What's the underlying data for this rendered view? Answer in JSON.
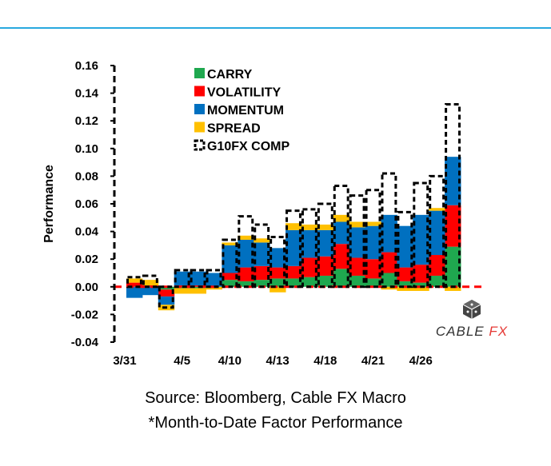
{
  "chart_data": {
    "type": "bar",
    "stacked": true,
    "ylabel": "Performance",
    "ylim": [
      -0.04,
      0.16
    ],
    "yticks": [
      "0.16",
      "0.14",
      "0.12",
      "0.10",
      "0.08",
      "0.06",
      "0.04",
      "0.02",
      "0.00",
      "-0.02",
      "-0.04"
    ],
    "xtick_labels": [
      "3/31",
      "4/5",
      "4/10",
      "4/13",
      "4/18",
      "4/21",
      "4/26"
    ],
    "xtick_positions": [
      0,
      3,
      6,
      9,
      12,
      15,
      18
    ],
    "reference_line": 0,
    "series": [
      {
        "name": "CARRY",
        "color": "#1fa84f",
        "values": [
          0.0,
          0.0,
          -0.002,
          -0.001,
          -0.001,
          0.0,
          0.005,
          0.004,
          0.005,
          0.006,
          0.006,
          0.007,
          0.008,
          0.013,
          0.008,
          0.006,
          0.01,
          0.004,
          0.003,
          0.008,
          0.029
        ]
      },
      {
        "name": "VOLATILITY",
        "color": "#ff0000",
        "values": [
          0.003,
          0.001,
          -0.005,
          0.001,
          0.001,
          0.0,
          0.005,
          0.01,
          0.01,
          0.008,
          0.009,
          0.014,
          0.014,
          0.018,
          0.013,
          0.014,
          0.015,
          0.01,
          0.013,
          0.015,
          0.03
        ]
      },
      {
        "name": "MOMENTUM",
        "color": "#0070c0",
        "values": [
          -0.008,
          -0.006,
          -0.006,
          0.01,
          0.01,
          0.01,
          0.02,
          0.02,
          0.017,
          0.014,
          0.026,
          0.02,
          0.019,
          0.016,
          0.022,
          0.024,
          0.027,
          0.03,
          0.036,
          0.032,
          0.035
        ]
      },
      {
        "name": "SPREAD",
        "color": "#ffc000",
        "values": [
          0.003,
          0.004,
          -0.004,
          -0.004,
          -0.004,
          -0.002,
          0.002,
          0.003,
          0.003,
          -0.004,
          0.005,
          0.004,
          0.004,
          0.005,
          0.004,
          0.003,
          -0.002,
          -0.003,
          -0.003,
          0.002,
          -0.003
        ]
      }
    ],
    "comp_series": {
      "name": "G10FX COMP",
      "values": [
        0.007,
        0.008,
        -0.015,
        0.012,
        0.012,
        0.012,
        0.034,
        0.051,
        0.045,
        0.036,
        0.055,
        0.056,
        0.06,
        0.073,
        0.066,
        0.07,
        0.082,
        0.054,
        0.075,
        0.08,
        0.132
      ]
    }
  },
  "legend": [
    {
      "label": "CARRY",
      "color": "#1fa84f"
    },
    {
      "label": "VOLATILITY",
      "color": "#ff0000"
    },
    {
      "label": "MOMENTUM",
      "color": "#0070c0"
    },
    {
      "label": "SPREAD",
      "color": "#ffc000"
    },
    {
      "label": "G10FX COMP",
      "color": "#000000"
    }
  ],
  "logo": {
    "text_left": "CABLE",
    "text_right": "FX"
  },
  "source": "Source: Bloomberg, Cable FX Macro",
  "note": "*Month-to-Date Factor Performance"
}
